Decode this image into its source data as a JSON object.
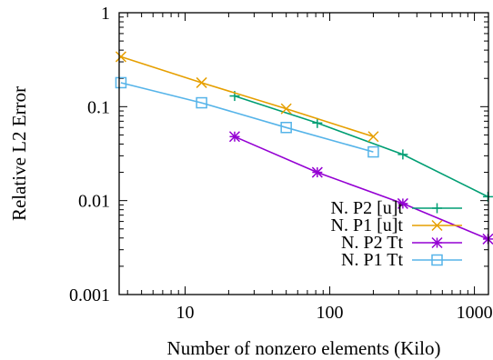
{
  "chart_data": {
    "type": "line",
    "xlabel": "Number of nonzero elements (Kilo)",
    "ylabel": "Relative L2 Error",
    "xscale": "log",
    "yscale": "log",
    "xlim": [
      3.5,
      1250
    ],
    "ylim": [
      0.001,
      1
    ],
    "x_ticks": [
      10,
      100,
      1000
    ],
    "x_tick_labels": [
      "10",
      "100",
      "1000"
    ],
    "y_ticks": [
      0.001,
      0.01,
      0.1,
      1
    ],
    "y_tick_labels": [
      "0.001",
      "0.01",
      "0.1",
      "1"
    ],
    "grid": false,
    "legend_position": "bottom-right",
    "series": [
      {
        "name": "N. P2 [u]t",
        "color": "#009e73",
        "marker": "plus",
        "x": [
          22,
          82,
          320,
          1240
        ],
        "y": [
          0.13,
          0.067,
          0.031,
          0.011
        ]
      },
      {
        "name": "N. P1 [u]t",
        "color": "#e69f00",
        "marker": "cross",
        "x": [
          3.6,
          13,
          50,
          200
        ],
        "y": [
          0.34,
          0.18,
          0.095,
          0.048
        ]
      },
      {
        "name": "N. P2 Tt",
        "color": "#9400d3",
        "marker": "star",
        "x": [
          22,
          82,
          320,
          1240
        ],
        "y": [
          0.048,
          0.02,
          0.0093,
          0.0039
        ]
      },
      {
        "name": "N. P1 Tt",
        "color": "#56b4e9",
        "marker": "square",
        "x": [
          3.6,
          13,
          50,
          200
        ],
        "y": [
          0.18,
          0.11,
          0.06,
          0.033
        ]
      }
    ]
  }
}
